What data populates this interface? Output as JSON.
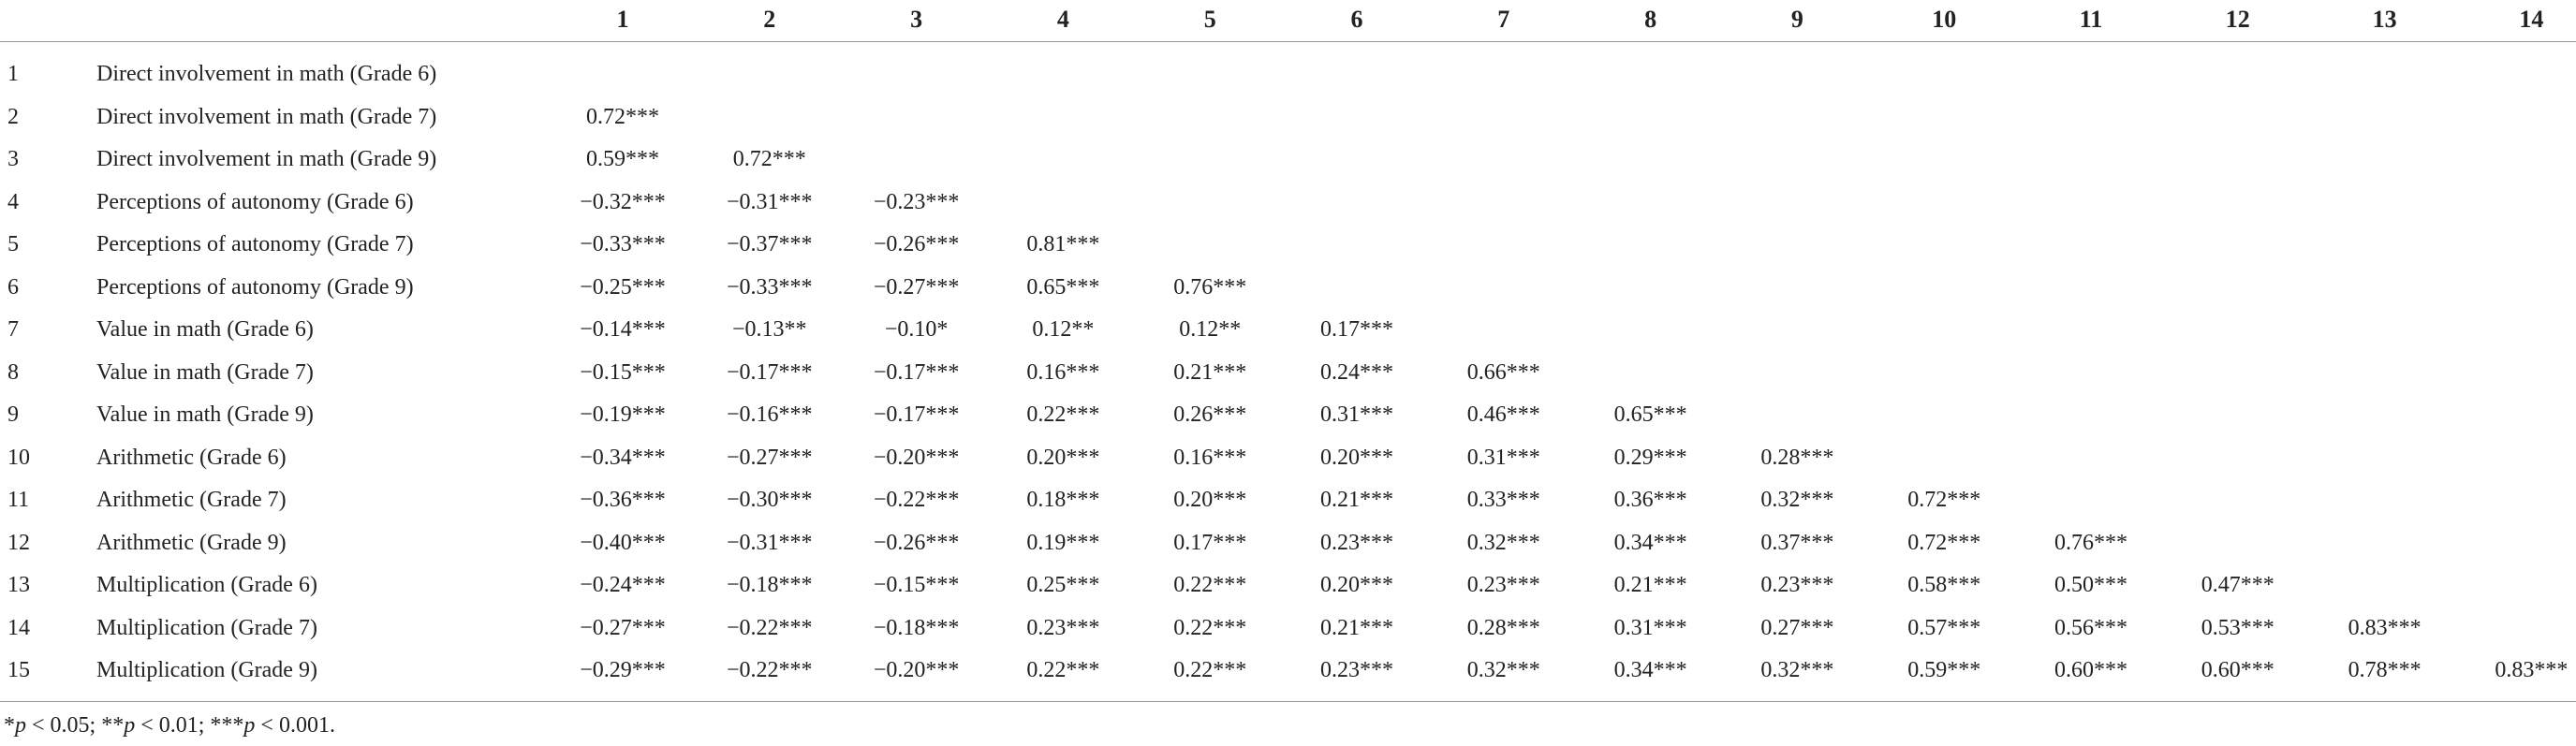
{
  "table": {
    "columns": [
      "1",
      "2",
      "3",
      "4",
      "5",
      "6",
      "7",
      "8",
      "9",
      "10",
      "11",
      "12",
      "13",
      "14"
    ],
    "rows": [
      {
        "number": "1",
        "label": "Direct involvement in math (Grade 6)",
        "cells": []
      },
      {
        "number": "2",
        "label": "Direct involvement in math (Grade 7)",
        "cells": [
          "0.72***"
        ]
      },
      {
        "number": "3",
        "label": "Direct involvement in math (Grade 9)",
        "cells": [
          "0.59***",
          "0.72***"
        ]
      },
      {
        "number": "4",
        "label": "Perceptions of autonomy (Grade 6)",
        "cells": [
          "−0.32***",
          "−0.31***",
          "−0.23***"
        ]
      },
      {
        "number": "5",
        "label": "Perceptions of autonomy (Grade 7)",
        "cells": [
          "−0.33***",
          "−0.37***",
          "−0.26***",
          "0.81***"
        ]
      },
      {
        "number": "6",
        "label": "Perceptions of autonomy (Grade 9)",
        "cells": [
          "−0.25***",
          "−0.33***",
          "−0.27***",
          "0.65***",
          "0.76***"
        ]
      },
      {
        "number": "7",
        "label": "Value in math (Grade 6)",
        "cells": [
          "−0.14***",
          "−0.13**",
          "−0.10*",
          "0.12**",
          "0.12**",
          "0.17***"
        ]
      },
      {
        "number": "8",
        "label": "Value in math (Grade 7)",
        "cells": [
          "−0.15***",
          "−0.17***",
          "−0.17***",
          "0.16***",
          "0.21***",
          "0.24***",
          "0.66***"
        ]
      },
      {
        "number": "9",
        "label": "Value in math (Grade 9)",
        "cells": [
          "−0.19***",
          "−0.16***",
          "−0.17***",
          "0.22***",
          "0.26***",
          "0.31***",
          "0.46***",
          "0.65***"
        ]
      },
      {
        "number": "10",
        "label": "Arithmetic (Grade 6)",
        "cells": [
          "−0.34***",
          "−0.27***",
          "−0.20***",
          "0.20***",
          "0.16***",
          "0.20***",
          "0.31***",
          "0.29***",
          "0.28***"
        ]
      },
      {
        "number": "11",
        "label": "Arithmetic (Grade 7)",
        "cells": [
          "−0.36***",
          "−0.30***",
          "−0.22***",
          "0.18***",
          "0.20***",
          "0.21***",
          "0.33***",
          "0.36***",
          "0.32***",
          "0.72***"
        ]
      },
      {
        "number": "12",
        "label": "Arithmetic (Grade 9)",
        "cells": [
          "−0.40***",
          "−0.31***",
          "−0.26***",
          "0.19***",
          "0.17***",
          "0.23***",
          "0.32***",
          "0.34***",
          "0.37***",
          "0.72***",
          "0.76***"
        ]
      },
      {
        "number": "13",
        "label": "Multiplication (Grade 6)",
        "cells": [
          "−0.24***",
          "−0.18***",
          "−0.15***",
          "0.25***",
          "0.22***",
          "0.20***",
          "0.23***",
          "0.21***",
          "0.23***",
          "0.58***",
          "0.50***",
          "0.47***"
        ]
      },
      {
        "number": "14",
        "label": "Multiplication (Grade 7)",
        "cells": [
          "−0.27***",
          "−0.22***",
          "−0.18***",
          "0.23***",
          "0.22***",
          "0.21***",
          "0.28***",
          "0.31***",
          "0.27***",
          "0.57***",
          "0.56***",
          "0.53***",
          "0.83***"
        ]
      },
      {
        "number": "15",
        "label": "Multiplication (Grade 9)",
        "cells": [
          "−0.29***",
          "−0.22***",
          "−0.20***",
          "0.22***",
          "0.22***",
          "0.23***",
          "0.32***",
          "0.34***",
          "0.32***",
          "0.59***",
          "0.60***",
          "0.60***",
          "0.78***",
          "0.83***"
        ]
      }
    ],
    "footnote": [
      "*",
      "p",
      " < 0.05; **",
      "p",
      " < 0.01; ***",
      "p",
      " < 0.001."
    ]
  }
}
